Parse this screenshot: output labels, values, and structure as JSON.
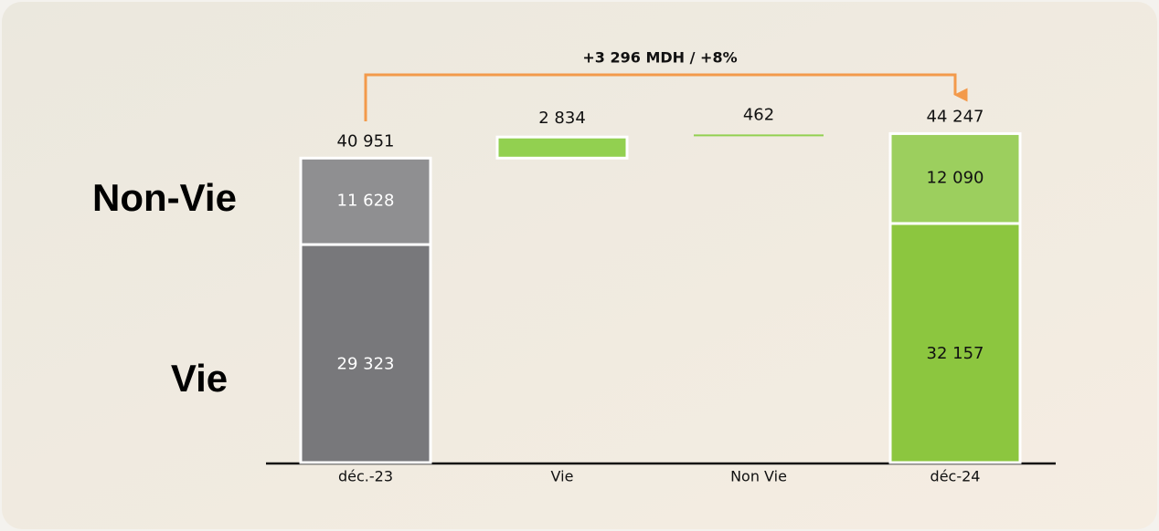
{
  "chart_data": {
    "type": "waterfall",
    "annotation": "+3 296 MDH / +8%",
    "categories": [
      "déc.-23",
      "Vie",
      "Non Vie",
      "déc-24"
    ],
    "series": [
      {
        "name": "Vie",
        "values": [
          29323,
          null,
          null,
          32157
        ],
        "value_labels": [
          "29 323",
          null,
          null,
          "32 157"
        ],
        "colors": [
          "#78787b",
          null,
          null,
          "#8cc63f"
        ]
      },
      {
        "name": "Non-Vie",
        "values": [
          11628,
          null,
          null,
          12090
        ],
        "value_labels": [
          "11 628",
          null,
          null,
          "12 090"
        ],
        "colors": [
          "#8f8f91",
          null,
          null,
          "#9ccf5e"
        ]
      }
    ],
    "totals": [
      40951,
      null,
      null,
      44247
    ],
    "total_labels": [
      "40 951",
      null,
      null,
      "44 247"
    ],
    "deltas": [
      null,
      2834,
      462,
      null
    ],
    "delta_labels": [
      null,
      "2 834",
      "462",
      null
    ],
    "delta_color": "#92d050",
    "ylim": [
      0,
      47000
    ]
  }
}
